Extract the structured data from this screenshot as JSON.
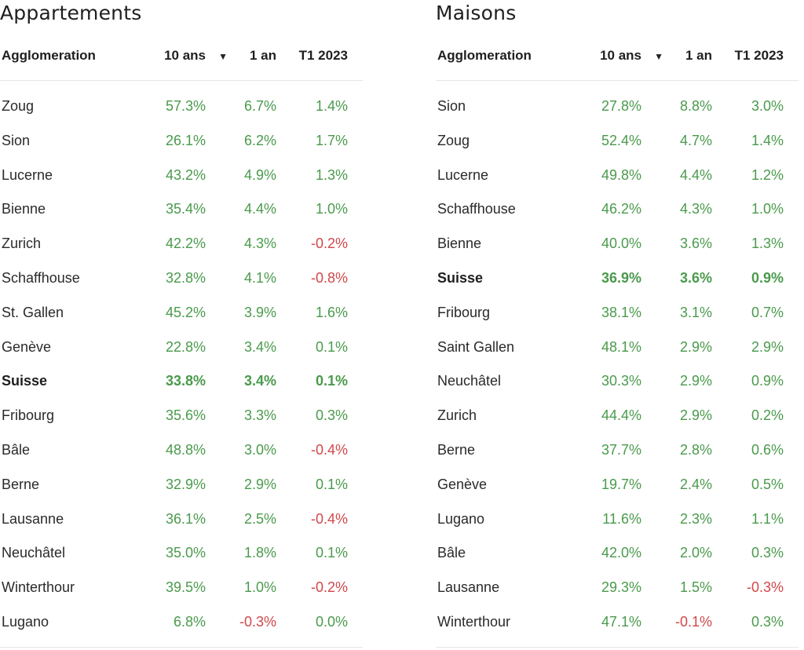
{
  "columns": {
    "agglomeration": "Agglomeration",
    "ten_years": "10 ans",
    "sort_indicator": "▼",
    "one_year": "1 an",
    "q1": "T1 2023"
  },
  "apartments": {
    "title": "Appartements",
    "rows": [
      {
        "name": "Zoug",
        "ten": "57.3%",
        "one": "6.7%",
        "q1": "1.4%",
        "bold": false
      },
      {
        "name": "Sion",
        "ten": "26.1%",
        "one": "6.2%",
        "q1": "1.7%",
        "bold": false
      },
      {
        "name": "Lucerne",
        "ten": "43.2%",
        "one": "4.9%",
        "q1": "1.3%",
        "bold": false
      },
      {
        "name": "Bienne",
        "ten": "35.4%",
        "one": "4.4%",
        "q1": "1.0%",
        "bold": false
      },
      {
        "name": "Zurich",
        "ten": "42.2%",
        "one": "4.3%",
        "q1": "-0.2%",
        "bold": false
      },
      {
        "name": "Schaffhouse",
        "ten": "32.8%",
        "one": "4.1%",
        "q1": "-0.8%",
        "bold": false
      },
      {
        "name": "St. Gallen",
        "ten": "45.2%",
        "one": "3.9%",
        "q1": "1.6%",
        "bold": false
      },
      {
        "name": "Genève",
        "ten": "22.8%",
        "one": "3.4%",
        "q1": "0.1%",
        "bold": false
      },
      {
        "name": "Suisse",
        "ten": "33.8%",
        "one": "3.4%",
        "q1": "0.1%",
        "bold": true
      },
      {
        "name": "Fribourg",
        "ten": "35.6%",
        "one": "3.3%",
        "q1": "0.3%",
        "bold": false
      },
      {
        "name": "Bâle",
        "ten": "48.8%",
        "one": "3.0%",
        "q1": "-0.4%",
        "bold": false
      },
      {
        "name": "Berne",
        "ten": "32.9%",
        "one": "2.9%",
        "q1": "0.1%",
        "bold": false
      },
      {
        "name": "Lausanne",
        "ten": "36.1%",
        "one": "2.5%",
        "q1": "-0.4%",
        "bold": false
      },
      {
        "name": "Neuchâtel",
        "ten": "35.0%",
        "one": "1.8%",
        "q1": "0.1%",
        "bold": false
      },
      {
        "name": "Winterthour",
        "ten": "39.5%",
        "one": "1.0%",
        "q1": "-0.2%",
        "bold": false
      },
      {
        "name": "Lugano",
        "ten": "6.8%",
        "one": "-0.3%",
        "q1": "0.0%",
        "bold": false
      }
    ]
  },
  "houses": {
    "title": "Maisons",
    "rows": [
      {
        "name": "Sion",
        "ten": "27.8%",
        "one": "8.8%",
        "q1": "3.0%",
        "bold": false
      },
      {
        "name": "Zoug",
        "ten": "52.4%",
        "one": "4.7%",
        "q1": "1.4%",
        "bold": false
      },
      {
        "name": "Lucerne",
        "ten": "49.8%",
        "one": "4.4%",
        "q1": "1.2%",
        "bold": false
      },
      {
        "name": "Schaffhouse",
        "ten": "46.2%",
        "one": "4.3%",
        "q1": "1.0%",
        "bold": false
      },
      {
        "name": "Bienne",
        "ten": "40.0%",
        "one": "3.6%",
        "q1": "1.3%",
        "bold": false
      },
      {
        "name": "Suisse",
        "ten": "36.9%",
        "one": "3.6%",
        "q1": "0.9%",
        "bold": true
      },
      {
        "name": "Fribourg",
        "ten": "38.1%",
        "one": "3.1%",
        "q1": "0.7%",
        "bold": false
      },
      {
        "name": "Saint Gallen",
        "ten": "48.1%",
        "one": "2.9%",
        "q1": "2.9%",
        "bold": false
      },
      {
        "name": "Neuchâtel",
        "ten": "30.3%",
        "one": "2.9%",
        "q1": "0.9%",
        "bold": false
      },
      {
        "name": "Zurich",
        "ten": "44.4%",
        "one": "2.9%",
        "q1": "0.2%",
        "bold": false
      },
      {
        "name": "Berne",
        "ten": "37.7%",
        "one": "2.8%",
        "q1": "0.6%",
        "bold": false
      },
      {
        "name": "Genève",
        "ten": "19.7%",
        "one": "2.4%",
        "q1": "0.5%",
        "bold": false
      },
      {
        "name": "Lugano",
        "ten": "11.6%",
        "one": "2.3%",
        "q1": "1.1%",
        "bold": false
      },
      {
        "name": "Bâle",
        "ten": "42.0%",
        "one": "2.0%",
        "q1": "0.3%",
        "bold": false
      },
      {
        "name": "Lausanne",
        "ten": "29.3%",
        "one": "1.5%",
        "q1": "-0.3%",
        "bold": false
      },
      {
        "name": "Winterthour",
        "ten": "47.1%",
        "one": "-0.1%",
        "q1": "0.3%",
        "bold": false
      }
    ]
  },
  "colors": {
    "positive": "#4a9a4c",
    "negative": "#d2474a"
  }
}
